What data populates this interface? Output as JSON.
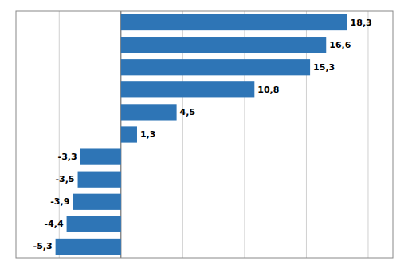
{
  "chart_data": {
    "type": "bar",
    "orientation": "horizontal",
    "categories": [
      null,
      null,
      null,
      null,
      null,
      null,
      null,
      null,
      null,
      null,
      null
    ],
    "values": [
      18.3,
      16.6,
      15.3,
      10.8,
      4.5,
      1.3,
      -3.3,
      -3.5,
      -3.9,
      -4.4,
      -5.3
    ],
    "value_labels": [
      "18,3",
      "16,6",
      "15,3",
      "10,8",
      "4,5",
      "1,3",
      "-3,3",
      "-3,5",
      "-3,9",
      "-4,4",
      "-5,3"
    ],
    "data_labels": true,
    "color": "#2E75B6",
    "xlim": [
      -8.5,
      22
    ],
    "xticks": [
      -5,
      0,
      5,
      10,
      15,
      20
    ],
    "grid": true,
    "tick_labels": false
  }
}
